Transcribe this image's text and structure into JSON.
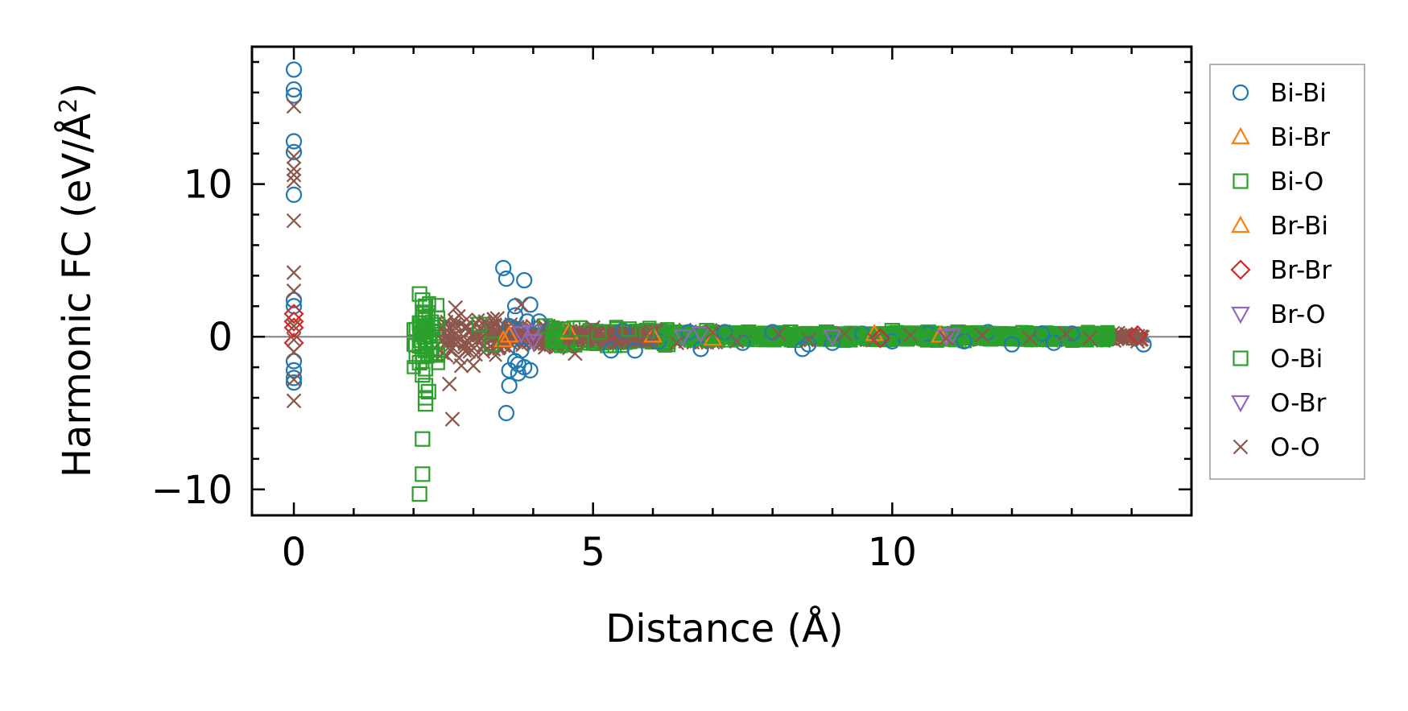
{
  "chart_data": {
    "type": "scatter",
    "title": "",
    "xlabel": "Distance (Å)",
    "ylabel_main": "Harmonic FC (eV/Å",
    "ylabel_sup": "2",
    "ylabel_close": ")",
    "xlim": [
      -0.7,
      15.0
    ],
    "ylim": [
      -11.7,
      19.0
    ],
    "xticks": [
      0,
      5,
      10
    ],
    "xtick_labels": [
      "0",
      "5",
      "10"
    ],
    "yticks": [
      -10,
      0,
      10
    ],
    "ytick_labels": [
      "−10",
      "0",
      "10"
    ],
    "grid": false,
    "legend_position": "right, outside",
    "zero_line": 0,
    "series": [
      {
        "name": "Bi-Bi",
        "marker": "circle",
        "color": "#1f77b4",
        "points": [
          [
            0,
            17.5
          ],
          [
            0,
            16.2
          ],
          [
            0,
            15.8
          ],
          [
            0,
            12.8
          ],
          [
            0,
            12.1
          ],
          [
            0,
            9.3
          ],
          [
            0,
            2.4
          ],
          [
            0,
            2.0
          ],
          [
            0,
            -1.6
          ],
          [
            0,
            -2.2
          ],
          [
            0,
            -2.7
          ],
          [
            0,
            -3.0
          ],
          [
            3.5,
            4.5
          ],
          [
            3.55,
            3.8
          ],
          [
            3.85,
            3.7
          ],
          [
            3.95,
            2.1
          ],
          [
            3.7,
            2.0
          ],
          [
            3.7,
            1.4
          ],
          [
            3.9,
            1.0
          ],
          [
            3.6,
            0.7
          ],
          [
            3.8,
            -0.9
          ],
          [
            3.7,
            -1.6
          ],
          [
            3.75,
            -1.8
          ],
          [
            3.85,
            -2.0
          ],
          [
            3.6,
            -2.2
          ],
          [
            3.95,
            -2.2
          ],
          [
            3.6,
            -3.2
          ],
          [
            3.55,
            -5.0
          ],
          [
            3.75,
            -2.4
          ],
          [
            4.1,
            1.0
          ],
          [
            5.3,
            -0.9
          ],
          [
            5.5,
            0.4
          ],
          [
            5.7,
            -0.9
          ],
          [
            6.1,
            -0.3
          ],
          [
            6.6,
            0.3
          ],
          [
            6.8,
            -0.8
          ],
          [
            7.2,
            0.3
          ],
          [
            7.5,
            -0.4
          ],
          [
            8.0,
            0.3
          ],
          [
            8.5,
            -0.8
          ],
          [
            8.6,
            -0.5
          ],
          [
            9.0,
            -0.4
          ],
          [
            9.5,
            0.2
          ],
          [
            10.0,
            -0.3
          ],
          [
            10.6,
            0.2
          ],
          [
            11.2,
            -0.3
          ],
          [
            11.6,
            0.3
          ],
          [
            12.0,
            -0.5
          ],
          [
            12.5,
            0.2
          ],
          [
            12.7,
            -0.4
          ],
          [
            13.0,
            0.2
          ],
          [
            14.2,
            -0.5
          ]
        ]
      },
      {
        "name": "Bi-Br",
        "marker": "triangle-up",
        "color": "#ff7f0e",
        "points": [
          [
            3.5,
            -0.2
          ],
          [
            4.6,
            0.3
          ],
          [
            6.0,
            0.1
          ],
          [
            9.7,
            0.2
          ]
        ]
      },
      {
        "name": "Bi-O",
        "marker": "square",
        "color": "#2ca02c",
        "points": [
          [
            2.1,
            2.8
          ],
          [
            2.15,
            2.4
          ],
          [
            2.2,
            2.0
          ],
          [
            2.15,
            1.6
          ],
          [
            2.2,
            1.2
          ],
          [
            2.1,
            0.9
          ],
          [
            2.2,
            0.6
          ],
          [
            2.15,
            0.3
          ],
          [
            2.2,
            -0.2
          ],
          [
            2.1,
            -0.6
          ],
          [
            2.2,
            -0.9
          ],
          [
            2.15,
            -1.3
          ],
          [
            2.1,
            -1.7
          ],
          [
            2.2,
            -2.1
          ],
          [
            2.15,
            -2.5
          ],
          [
            2.2,
            -3.2
          ],
          [
            2.25,
            -3.6
          ],
          [
            2.2,
            -4.0
          ],
          [
            2.2,
            -4.4
          ],
          [
            2.15,
            -6.7
          ],
          [
            2.15,
            -9.0
          ],
          [
            2.1,
            -10.3
          ],
          [
            2.4,
            1.2
          ],
          [
            2.4,
            -1.2
          ],
          [
            3.1,
            0.8
          ],
          [
            3.3,
            -0.5
          ],
          [
            4.2,
            0.7
          ],
          [
            4.5,
            0.5
          ],
          [
            5.1,
            0.3
          ],
          [
            5.6,
            0.5
          ],
          [
            5.9,
            0.4
          ],
          [
            6.3,
            0.3
          ],
          [
            6.9,
            0.4
          ],
          [
            7.6,
            0.3
          ],
          [
            8.3,
            0.3
          ],
          [
            8.9,
            0.3
          ],
          [
            9.4,
            0.2
          ],
          [
            10.0,
            0.4
          ],
          [
            10.6,
            0.3
          ],
          [
            11.1,
            0.3
          ],
          [
            11.6,
            0.2
          ],
          [
            12.3,
            0.2
          ],
          [
            12.8,
            0.2
          ],
          [
            13.6,
            0.1
          ]
        ]
      },
      {
        "name": "Br-Bi",
        "marker": "triangle-up",
        "color": "#ff7f0e",
        "points": [
          [
            3.6,
            0.1
          ],
          [
            7.0,
            -0.1
          ],
          [
            10.8,
            0.1
          ]
        ]
      },
      {
        "name": "Br-Br",
        "marker": "diamond",
        "color": "#d62728",
        "points": [
          [
            0,
            1.5
          ],
          [
            0,
            1.0
          ],
          [
            0,
            0.6
          ],
          [
            0,
            -0.4
          ],
          [
            14.1,
            0.1
          ],
          [
            9.8,
            -0.1
          ]
        ]
      },
      {
        "name": "Br-O",
        "marker": "triangle-down",
        "color": "#9467bd",
        "points": [
          [
            4.0,
            0.3
          ],
          [
            4.0,
            -0.3
          ],
          [
            6.5,
            0.0
          ],
          [
            9.0,
            0.0
          ],
          [
            10.9,
            0.0
          ]
        ]
      },
      {
        "name": "O-Bi",
        "marker": "square",
        "color": "#2ca02c",
        "points": [
          [
            2.3,
            0.6
          ],
          [
            2.3,
            -0.8
          ],
          [
            4.8,
            -0.4
          ],
          [
            7.3,
            -0.2
          ],
          [
            10.2,
            -0.1
          ]
        ]
      },
      {
        "name": "O-Br",
        "marker": "triangle-down",
        "color": "#9467bd",
        "points": [
          [
            3.8,
            0.2
          ],
          [
            6.8,
            0.2
          ],
          [
            11.0,
            0.1
          ]
        ]
      },
      {
        "name": "O-O",
        "marker": "x",
        "color": "#8c564b",
        "points": [
          [
            0,
            15.1
          ],
          [
            0,
            11.8
          ],
          [
            0,
            11.0
          ],
          [
            0,
            10.6
          ],
          [
            0,
            10.2
          ],
          [
            0,
            7.6
          ],
          [
            0,
            4.2
          ],
          [
            0,
            3.0
          ],
          [
            0,
            0.7
          ],
          [
            0,
            -0.2
          ],
          [
            0,
            -1.0
          ],
          [
            0,
            -2.8
          ],
          [
            0,
            -4.2
          ],
          [
            2.7,
            1.9
          ],
          [
            2.8,
            -0.1
          ],
          [
            2.8,
            -1.9
          ],
          [
            2.6,
            -3.1
          ],
          [
            2.65,
            -5.4
          ],
          [
            3.0,
            -1.9
          ],
          [
            3.2,
            0.9
          ],
          [
            3.4,
            1.2
          ],
          [
            3.8,
            2.1
          ],
          [
            4.7,
            -1.1
          ],
          [
            5.0,
            0.6
          ],
          [
            5.4,
            -0.4
          ],
          [
            5.9,
            0.2
          ],
          [
            6.4,
            -0.4
          ],
          [
            7.0,
            0.3
          ],
          [
            7.4,
            -0.3
          ],
          [
            8.1,
            0.2
          ],
          [
            8.6,
            -0.2
          ],
          [
            9.2,
            0.2
          ],
          [
            9.7,
            -0.2
          ],
          [
            10.3,
            0.1
          ],
          [
            10.9,
            -0.1
          ],
          [
            11.5,
            0.1
          ],
          [
            12.3,
            -0.1
          ],
          [
            12.9,
            0.2
          ],
          [
            13.3,
            -0.1
          ],
          [
            14.1,
            -0.3
          ]
        ]
      }
    ],
    "bands": [
      {
        "x0": 2.0,
        "x1": 2.45,
        "y0": -2.9,
        "y1": 2.7,
        "color": "#2ca02c",
        "marker": "square"
      },
      {
        "x0": 2.45,
        "x1": 3.45,
        "y0": -1.4,
        "y1": 1.4,
        "color": "#8c564b",
        "marker": "x"
      },
      {
        "x0": 3.45,
        "x1": 4.6,
        "y0": -0.9,
        "y1": 0.9,
        "color": "#8c564b",
        "marker": "x"
      },
      {
        "x0": 4.3,
        "x1": 6.3,
        "y0": -0.7,
        "y1": 0.7,
        "color": "#2ca02c",
        "marker": "square"
      },
      {
        "x0": 4.6,
        "x1": 7.3,
        "y0": -0.5,
        "y1": 0.5,
        "color": "#8c564b",
        "marker": "x"
      },
      {
        "x0": 7.3,
        "x1": 14.2,
        "y0": -0.3,
        "y1": 0.3,
        "color": "#8c564b",
        "marker": "x"
      },
      {
        "x0": 6.2,
        "x1": 13.6,
        "y0": -0.3,
        "y1": 0.35,
        "color": "#2ca02c",
        "marker": "square"
      }
    ]
  }
}
